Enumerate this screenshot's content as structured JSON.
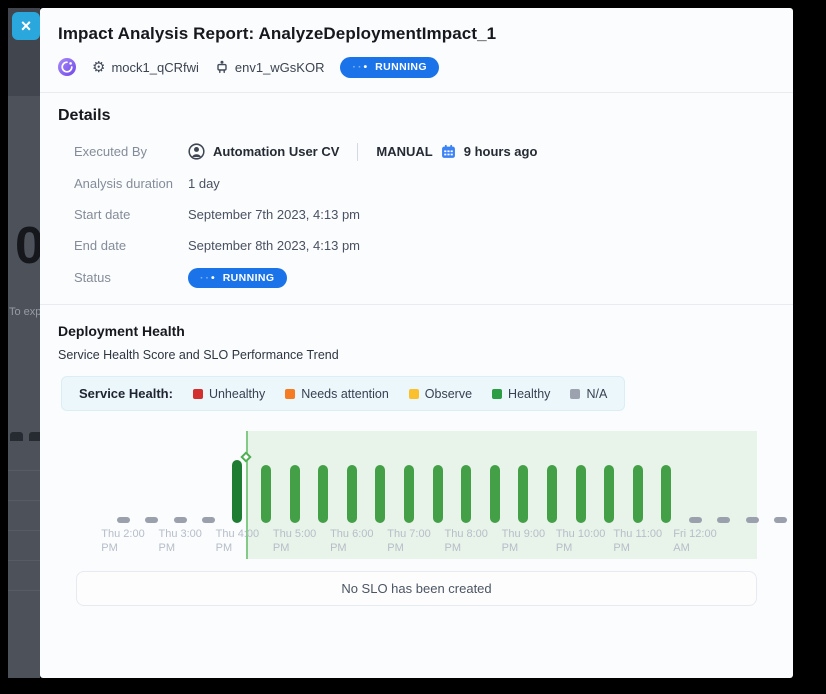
{
  "background": {
    "clipped_number": "0",
    "clipped_text": "To exp"
  },
  "window": {
    "close_label": "×"
  },
  "header": {
    "title": "Impact Analysis Report: AnalyzeDeploymentImpact_1",
    "service_name": "mock1_qCRfwi",
    "environment_name": "env1_wGsKOR",
    "status_badge": "RUNNING"
  },
  "details": {
    "heading": "Details",
    "executed_by_label": "Executed By",
    "executed_by_user": "Automation User CV",
    "executed_by_mode": "MANUAL",
    "executed_by_time": "9 hours ago",
    "duration_label": "Analysis duration",
    "duration_value": "1 day",
    "start_label": "Start date",
    "start_value": "September 7th 2023, 4:13 pm",
    "end_label": "End date",
    "end_value": "September 8th 2023, 4:13 pm",
    "status_label": "Status",
    "status_value": "RUNNING"
  },
  "deployment_health": {
    "heading": "Deployment Health",
    "subtitle": "Service Health Score and SLO Performance Trend",
    "legend_title": "Service Health:",
    "legend": [
      {
        "label": "Unhealthy",
        "color": "#d32f2f"
      },
      {
        "label": "Needs attention",
        "color": "#f57c22"
      },
      {
        "label": "Observe",
        "color": "#fbc02d"
      },
      {
        "label": "Healthy",
        "color": "#2e9e44"
      },
      {
        "label": "N/A",
        "color": "#9ca3af"
      }
    ],
    "slo_empty_message": "No SLO has been created"
  },
  "chart_data": {
    "type": "bar",
    "title": "Service Health Score and SLO Performance Trend",
    "x_interval_minutes": 30,
    "slots": [
      "na",
      "na",
      "na",
      "na",
      "healthy_dark",
      "healthy",
      "healthy",
      "healthy",
      "healthy",
      "healthy",
      "healthy",
      "healthy",
      "healthy",
      "healthy",
      "healthy",
      "healthy",
      "healthy",
      "healthy",
      "healthy",
      "healthy",
      "na",
      "na",
      "na",
      "na"
    ],
    "tick_labels": [
      {
        "line1": "Thu 2:00",
        "line2": "PM"
      },
      {
        "line1": "Thu 3:00",
        "line2": "PM"
      },
      {
        "line1": "Thu 4:00",
        "line2": "PM"
      },
      {
        "line1": "Thu 5:00",
        "line2": "PM"
      },
      {
        "line1": "Thu 6:00",
        "line2": "PM"
      },
      {
        "line1": "Thu 7:00",
        "line2": "PM"
      },
      {
        "line1": "Thu 8:00",
        "line2": "PM"
      },
      {
        "line1": "Thu 9:00",
        "line2": "PM"
      },
      {
        "line1": "Thu 10:00",
        "line2": "PM"
      },
      {
        "line1": "Thu 11:00",
        "line2": "PM"
      },
      {
        "line1": "Fri 12:00",
        "line2": "AM"
      }
    ],
    "deployment_marker": {
      "between_slots": [
        4,
        5
      ]
    },
    "legend_position": "top",
    "grid": false,
    "colors": {
      "healthy": "#43a047",
      "healthy_dark": "#1e7d32",
      "na": "#9aa1ad",
      "region": "#e8f3e9",
      "marker_line": "#83ca86",
      "marker_border": "#4caf50"
    }
  }
}
